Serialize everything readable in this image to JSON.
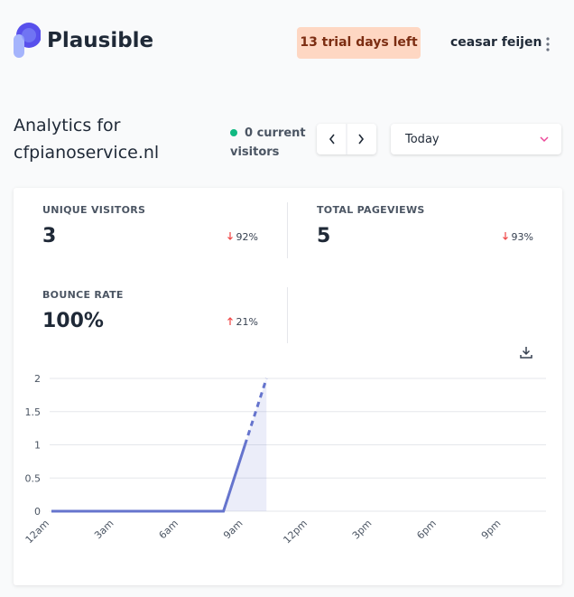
{
  "header": {
    "brand": "Plausible",
    "trial": "13 trial days left",
    "user": "ceasar feijen"
  },
  "site": {
    "heading": "Analytics for",
    "domain": "cfpianoservice.nl",
    "visitors": "0 current visitors",
    "period": "Today"
  },
  "stats": [
    {
      "label": "UNIQUE VISITORS",
      "value": "3",
      "change": "92%",
      "direction": "down"
    },
    {
      "label": "TOTAL PAGEVIEWS",
      "value": "5",
      "change": "93%",
      "direction": "down"
    },
    {
      "label": "BOUNCE RATE",
      "value": "100%",
      "change": "21%",
      "direction": "up"
    }
  ],
  "chart_data": {
    "type": "line",
    "color": "#6574cd",
    "grid": true,
    "categories": [
      "12am",
      null,
      null,
      "3am",
      null,
      null,
      "6am",
      null,
      null,
      "9am",
      null,
      null,
      "12pm",
      null,
      null,
      "3pm",
      null,
      null,
      "6pm",
      null,
      null,
      "9pm",
      null,
      null
    ],
    "values": [
      0,
      0,
      0,
      0,
      0,
      0,
      0,
      0,
      0,
      1,
      2,
      null,
      null,
      null,
      null,
      null,
      null,
      null,
      null,
      null,
      null,
      null,
      null,
      null
    ],
    "ylim": [
      0,
      2
    ],
    "yticks": [
      0,
      0.5,
      1,
      1.5,
      2
    ]
  }
}
